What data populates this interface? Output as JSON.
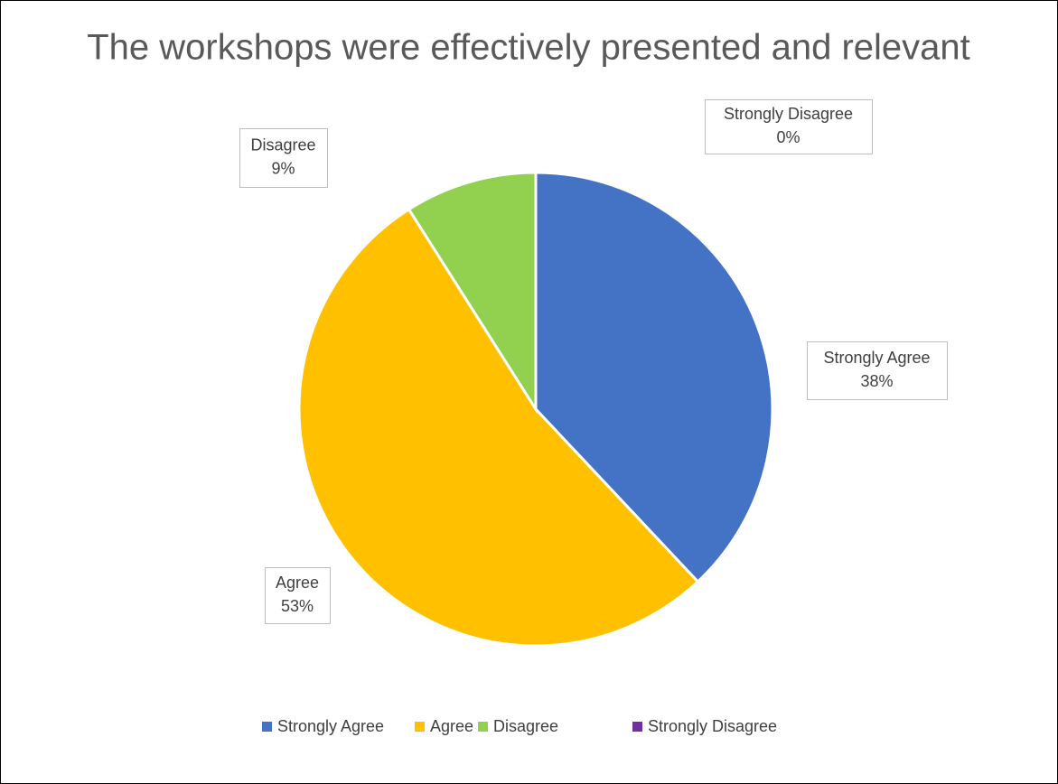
{
  "chart_data": {
    "type": "pie",
    "title": "The workshops were effectively presented and relevant",
    "categories": [
      "Strongly Agree",
      "Agree",
      "Disagree",
      "Strongly Disagree"
    ],
    "values": [
      38,
      53,
      9,
      0
    ],
    "value_labels": [
      "38%",
      "53%",
      "9%",
      "0%"
    ],
    "colors": [
      "#4472c4",
      "#ffc000",
      "#92d050",
      "#7030a0"
    ],
    "legend": "bottom"
  }
}
